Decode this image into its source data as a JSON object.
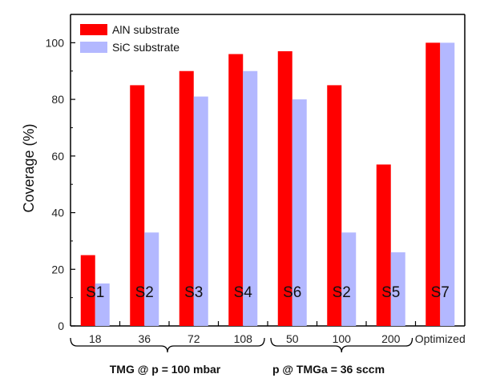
{
  "chart_data": {
    "type": "bar",
    "categories": [
      "18",
      "36",
      "72",
      "108",
      "50",
      "100",
      "200",
      "Optimized"
    ],
    "sample_labels": [
      "S1",
      "S2",
      "S3",
      "S4",
      "S6",
      "S2",
      "S5",
      "S7"
    ],
    "series": [
      {
        "name": "AlN substrate",
        "color": "#ff0000",
        "values": [
          25,
          85,
          90,
          96,
          97,
          85,
          57,
          100
        ]
      },
      {
        "name": "SiC substrate",
        "color": "#b3b8ff",
        "values": [
          15,
          33,
          81,
          90,
          80,
          33,
          26,
          100
        ]
      }
    ],
    "title": "",
    "xlabel": "",
    "ylabel": "Coverage (%)",
    "ylim": [
      0,
      110
    ],
    "yticks": [
      0,
      20,
      40,
      60,
      80,
      100
    ],
    "group_labels": [
      "TMG @ p = 100 mbar",
      "p @ TMGa = 36 sccm"
    ],
    "legend_position": "top-left",
    "grid": false
  }
}
